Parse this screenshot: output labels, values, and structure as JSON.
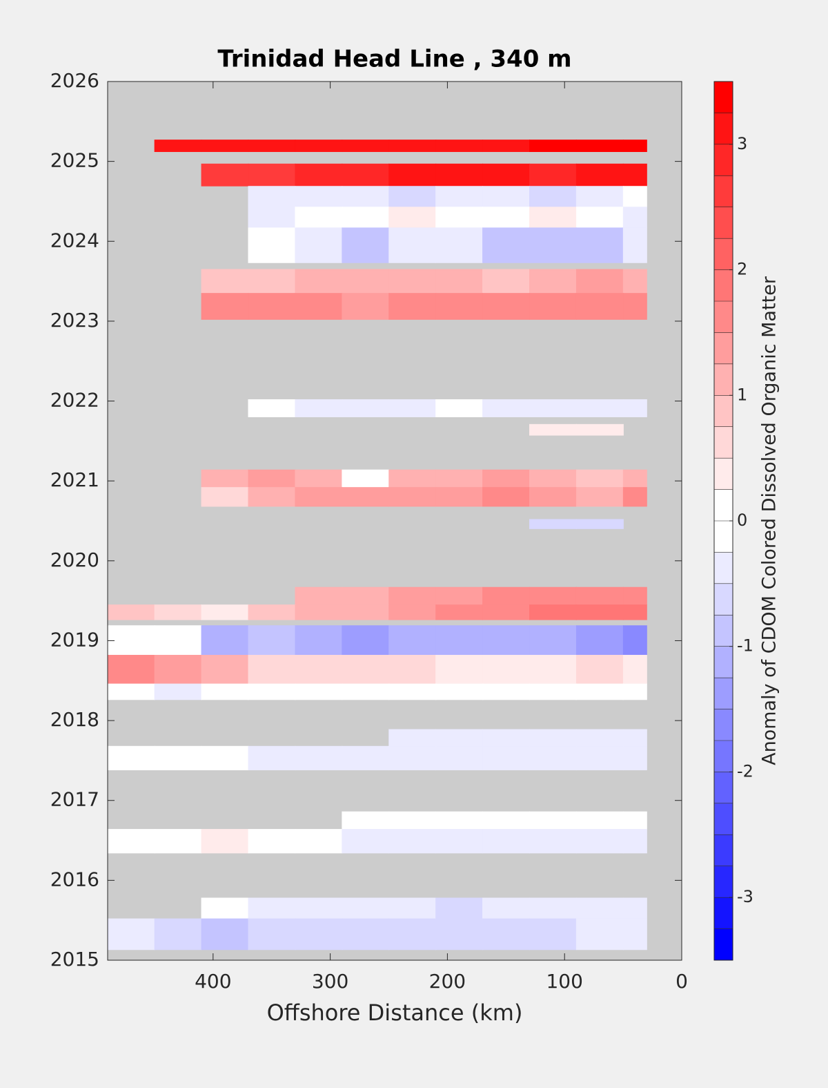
{
  "chart_data": {
    "type": "contour",
    "title": "Trinidad Head Line , 340 m",
    "xlabel": "Offshore Distance (km)",
    "colorbar_label": "Anomaly of CDOM Colored Dissolved Organic Matter",
    "xlim": [
      490,
      0
    ],
    "xticks": [
      400,
      300,
      200,
      100,
      0
    ],
    "ylim": [
      2015,
      2026
    ],
    "yticks": [
      2015,
      2016,
      2017,
      2018,
      2019,
      2020,
      2021,
      2022,
      2023,
      2024,
      2025,
      2026
    ],
    "clim": [
      -3.5,
      3.5
    ],
    "cticks": [
      -3,
      -2,
      -1,
      0,
      1,
      2,
      3
    ],
    "contour_step": 0.25,
    "colormap": [
      "#0000ff",
      "#ffffff",
      "#ff0000"
    ],
    "missing_color": "#cccccc",
    "x_edges": [
      490,
      450,
      410,
      370,
      330,
      290,
      250,
      210,
      170,
      130,
      90,
      50,
      30
    ],
    "rows": [
      {
        "y": [
          2025.12,
          2025.27
        ],
        "values": [
          null,
          3.2,
          3.2,
          3.2,
          3.1,
          3.0,
          3.1,
          3.2,
          3.2,
          3.3,
          3.3,
          3.3
        ]
      },
      {
        "y": [
          2024.69,
          2024.97
        ],
        "values": [
          null,
          null,
          2.6,
          2.7,
          2.8,
          2.8,
          3.0,
          3.1,
          3.0,
          2.9,
          3.0,
          3.0
        ]
      },
      {
        "y": [
          2024.43,
          2024.69
        ],
        "values": [
          null,
          null,
          null,
          -0.3,
          -0.4,
          -0.5,
          -0.6,
          -0.5,
          -0.4,
          -0.6,
          -0.3,
          -0.2
        ]
      },
      {
        "y": [
          2024.17,
          2024.43
        ],
        "values": [
          null,
          null,
          null,
          -0.3,
          -0.2,
          0.1,
          0.3,
          0.2,
          -0.2,
          0.3,
          0.2,
          -0.3
        ]
      },
      {
        "y": [
          2023.73,
          2024.17
        ],
        "values": [
          null,
          null,
          null,
          -0.2,
          -0.4,
          -0.8,
          -0.5,
          -0.3,
          -0.8,
          -0.9,
          -0.9,
          -0.3
        ]
      },
      {
        "y": [
          2023.35,
          2023.65
        ],
        "values": [
          null,
          null,
          0.9,
          0.8,
          1.0,
          1.1,
          1.2,
          1.0,
          0.9,
          1.0,
          1.3,
          1.0
        ]
      },
      {
        "y": [
          2023.02,
          2023.35
        ],
        "values": [
          null,
          null,
          1.6,
          1.5,
          1.6,
          1.4,
          1.5,
          1.7,
          1.6,
          1.5,
          1.6,
          1.5
        ]
      },
      {
        "y": [
          2021.8,
          2022.02
        ],
        "values": [
          null,
          null,
          null,
          -0.1,
          -0.4,
          -0.5,
          -0.3,
          -0.2,
          -0.4,
          -0.5,
          -0.5,
          -0.3
        ]
      },
      {
        "y": [
          2021.57,
          2021.71
        ],
        "values": [
          null,
          null,
          null,
          null,
          null,
          null,
          null,
          null,
          null,
          0.4,
          0.4,
          null
        ]
      },
      {
        "y": [
          2020.92,
          2021.14
        ],
        "values": [
          null,
          null,
          1.1,
          1.3,
          1.2,
          0.2,
          1.2,
          1.1,
          1.3,
          1.2,
          0.8,
          1.1
        ]
      },
      {
        "y": [
          2020.68,
          2020.92
        ],
        "values": [
          null,
          null,
          0.6,
          1.0,
          1.3,
          1.4,
          1.3,
          1.4,
          1.5,
          1.3,
          1.2,
          1.5
        ]
      },
      {
        "y": [
          2020.4,
          2020.52
        ],
        "values": [
          null,
          null,
          null,
          null,
          null,
          null,
          null,
          null,
          null,
          -0.6,
          -0.6,
          null
        ]
      },
      {
        "y": [
          2019.45,
          2019.67
        ],
        "values": [
          null,
          null,
          null,
          null,
          1.0,
          1.2,
          1.3,
          1.4,
          1.5,
          1.6,
          1.7,
          1.6
        ]
      },
      {
        "y": [
          2019.26,
          2019.45
        ],
        "values": [
          0.9,
          0.7,
          0.4,
          0.8,
          1.2,
          1.1,
          1.3,
          1.5,
          1.6,
          1.8,
          1.8,
          1.9
        ]
      },
      {
        "y": [
          2018.82,
          2019.19
        ],
        "values": [
          0.1,
          0.2,
          -1.2,
          -1.0,
          -1.1,
          -1.4,
          -1.2,
          -1.2,
          -1.1,
          -1.2,
          -1.4,
          -1.6
        ]
      },
      {
        "y": [
          2018.46,
          2018.82
        ],
        "values": [
          1.6,
          1.3,
          1.1,
          0.7,
          0.6,
          0.5,
          0.5,
          0.4,
          0.3,
          0.4,
          0.7,
          0.4
        ]
      },
      {
        "y": [
          2018.26,
          2018.46
        ],
        "values": [
          -0.2,
          -0.3,
          0.1,
          0.1,
          0.0,
          0.2,
          0.1,
          0.1,
          0.0,
          0.1,
          0.0,
          0.0
        ]
      },
      {
        "y": [
          2017.68,
          2017.89
        ],
        "values": [
          null,
          null,
          null,
          null,
          null,
          null,
          -0.3,
          -0.3,
          -0.4,
          -0.4,
          -0.3,
          -0.4
        ]
      },
      {
        "y": [
          2017.38,
          2017.68
        ],
        "values": [
          0.0,
          0.1,
          0.0,
          -0.3,
          -0.4,
          -0.5,
          -0.4,
          -0.4,
          -0.5,
          -0.5,
          -0.4,
          -0.3
        ]
      },
      {
        "y": [
          2016.64,
          2016.86
        ],
        "values": [
          null,
          null,
          null,
          null,
          null,
          0.0,
          0.0,
          0.0,
          0.0,
          0.0,
          0.0,
          0.0
        ]
      },
      {
        "y": [
          2016.34,
          2016.64
        ],
        "values": [
          0.0,
          0.2,
          0.3,
          0.1,
          -0.2,
          -0.3,
          -0.4,
          -0.4,
          -0.3,
          -0.4,
          -0.3,
          -0.4
        ]
      },
      {
        "y": [
          2015.52,
          2015.78
        ],
        "values": [
          null,
          null,
          -0.2,
          -0.3,
          -0.4,
          -0.5,
          -0.5,
          -0.6,
          -0.5,
          -0.5,
          -0.4,
          -0.5
        ]
      },
      {
        "y": [
          2015.13,
          2015.52
        ],
        "values": [
          -0.5,
          -0.7,
          -0.8,
          -0.7,
          -0.6,
          -0.6,
          -0.7,
          -0.7,
          -0.6,
          -0.6,
          -0.5,
          -0.4
        ]
      }
    ]
  }
}
